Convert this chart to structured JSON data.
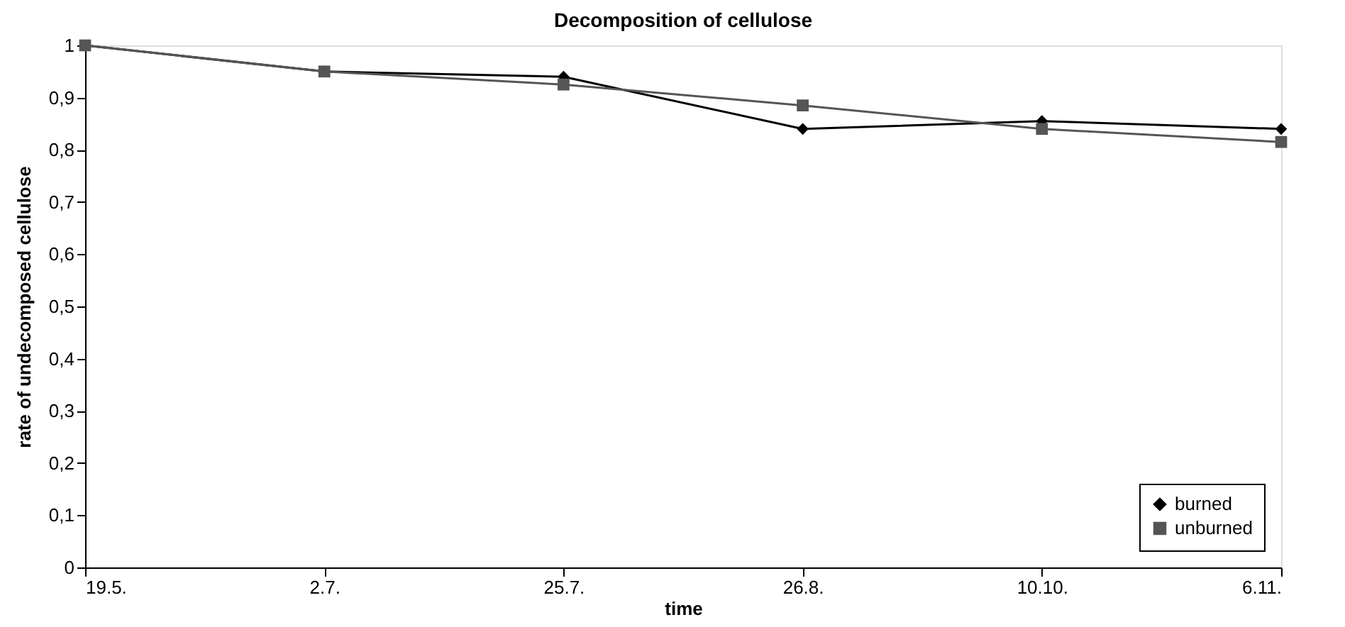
{
  "chart_data": {
    "type": "line",
    "title": "Decomposition of cellulose",
    "xlabel": "time",
    "ylabel": "rate of undecomposed cellulose",
    "categories": [
      "19.5.",
      "2.7.",
      "25.7.",
      "26.8.",
      "10.10.",
      "6.11."
    ],
    "series": [
      {
        "name": "burned",
        "color": "#000000",
        "marker": "diamond",
        "values": [
          1,
          0.95,
          0.94,
          0.84,
          0.855,
          0.84
        ]
      },
      {
        "name": "unburned",
        "color": "#555555",
        "marker": "square",
        "values": [
          1,
          0.95,
          0.925,
          0.885,
          0.84,
          0.815
        ]
      }
    ],
    "ylim": [
      0,
      1
    ],
    "yticks": [
      0,
      {
        "value": 0.1,
        "label": "0,1"
      },
      {
        "value": 0.2,
        "label": "0,2"
      },
      {
        "value": 0.3,
        "label": "0,3"
      },
      {
        "value": 0.4,
        "label": "0,4"
      },
      {
        "value": 0.5,
        "label": "0,5"
      },
      {
        "value": 0.6,
        "label": "0,6"
      },
      {
        "value": 0.7,
        "label": "0,7"
      },
      {
        "value": 0.8,
        "label": "0,8"
      },
      {
        "value": 0.9,
        "label": "0,9"
      },
      1
    ],
    "grid": false,
    "legend": "bottom right",
    "line_style": "solid"
  }
}
